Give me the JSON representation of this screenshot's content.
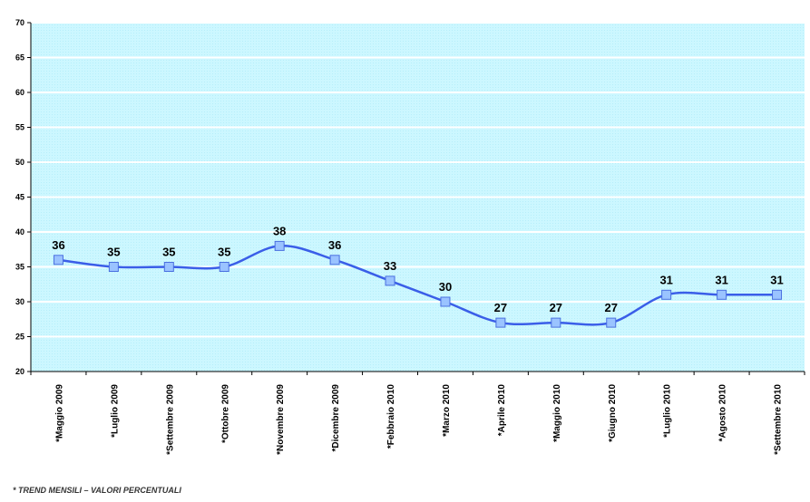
{
  "chart_data": {
    "type": "line",
    "categories": [
      "*Maggio 2009",
      "*Luglio 2009",
      "*Settembre 2009",
      "*Ottobre 2009",
      "*Novembre 2009",
      "*Dicembre 2009",
      "*Febbraio 2010",
      "*Marzo 2010",
      "*Aprile 2010",
      "*Maggio 2010",
      "*Giugno 2010",
      "*Luglio 2010",
      "*Agosto 2010",
      "*Settembre 2010"
    ],
    "values": [
      36,
      35,
      35,
      35,
      38,
      36,
      33,
      30,
      27,
      27,
      27,
      31,
      31,
      31
    ],
    "ylim": [
      20,
      70
    ],
    "yticks": [
      20,
      25,
      30,
      35,
      40,
      45,
      50,
      55,
      60,
      65,
      70
    ],
    "grid": true,
    "title": "",
    "xlabel": "",
    "ylabel": "",
    "colors": {
      "plot_background": "#ccf7ff",
      "line": "#3a5ee8",
      "marker_fill": "#9ac3ff",
      "marker_stroke": "#4a70e0",
      "grid": "#ffffff"
    }
  },
  "footnote": "* TREND MENSILI – VALORI PERCENTUALI"
}
